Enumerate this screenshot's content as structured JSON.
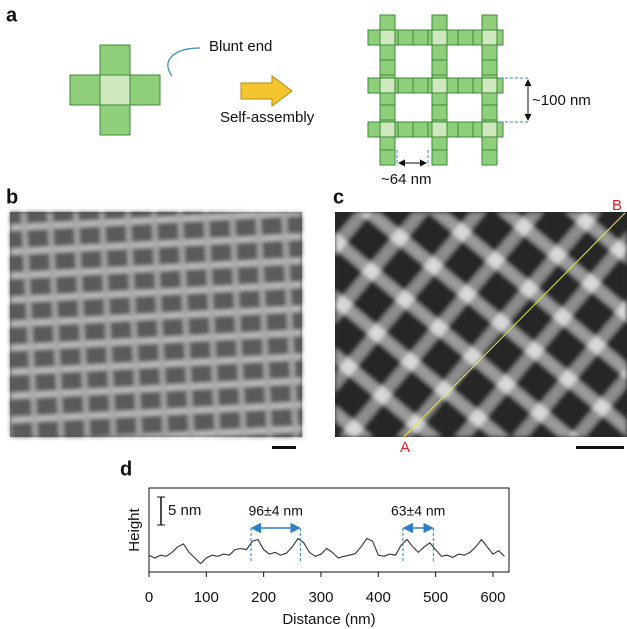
{
  "panel_labels": [
    "a",
    "b",
    "c",
    "d"
  ],
  "diagram": {
    "blunt_end": "Blunt end",
    "self_assembly": "Self-assembly",
    "spacing_vertical": "~100 nm",
    "spacing_horizontal": "~64 nm"
  },
  "images": {
    "point_a": "A",
    "point_b": "B"
  },
  "chart_data": {
    "type": "line",
    "x_label": "Distance (nm)",
    "y_label": "Height",
    "x": [
      0,
      10,
      20,
      30,
      40,
      50,
      60,
      70,
      80,
      90,
      100,
      110,
      120,
      130,
      140,
      150,
      160,
      170,
      180,
      190,
      200,
      210,
      220,
      230,
      240,
      250,
      260,
      270,
      280,
      290,
      300,
      310,
      320,
      330,
      340,
      350,
      360,
      370,
      380,
      390,
      400,
      410,
      420,
      430,
      440,
      450,
      460,
      470,
      480,
      490,
      500,
      510,
      520,
      530,
      540,
      550,
      560,
      570,
      580,
      590,
      600,
      610,
      620
    ],
    "series": [
      {
        "color": "#333333",
        "values": [
          3,
          2.5,
          3,
          2.8,
          3.5,
          4.5,
          5,
          3.5,
          2.5,
          1.5,
          2.5,
          3,
          2.8,
          3.2,
          3,
          4,
          4.2,
          4,
          5.5,
          5.8,
          4,
          3.2,
          3.5,
          3,
          3.4,
          4.5,
          6,
          5.2,
          3.5,
          2.8,
          3.2,
          4.2,
          3.5,
          2.5,
          2.8,
          3,
          3.3,
          4.5,
          6,
          5.5,
          3,
          2.8,
          3.2,
          3,
          4.8,
          5.8,
          4.5,
          3.5,
          4.5,
          5.2,
          4,
          2.8,
          3,
          2.6,
          3.2,
          3,
          3.5,
          4.5,
          5.8,
          4.5,
          3.2,
          3.8,
          2.8
        ]
      }
    ],
    "xlim": [
      0,
      628
    ],
    "ylim": [
      0,
      15
    ],
    "xticks": [
      0,
      100,
      200,
      300,
      400,
      500,
      600
    ],
    "scale_bar": {
      "label": "5 nm",
      "value": 5
    },
    "annotations": [
      {
        "text": "96±4 nm",
        "x": [
          178,
          264
        ]
      },
      {
        "text": "63±4 nm",
        "x": [
          443,
          496
        ]
      }
    ]
  }
}
